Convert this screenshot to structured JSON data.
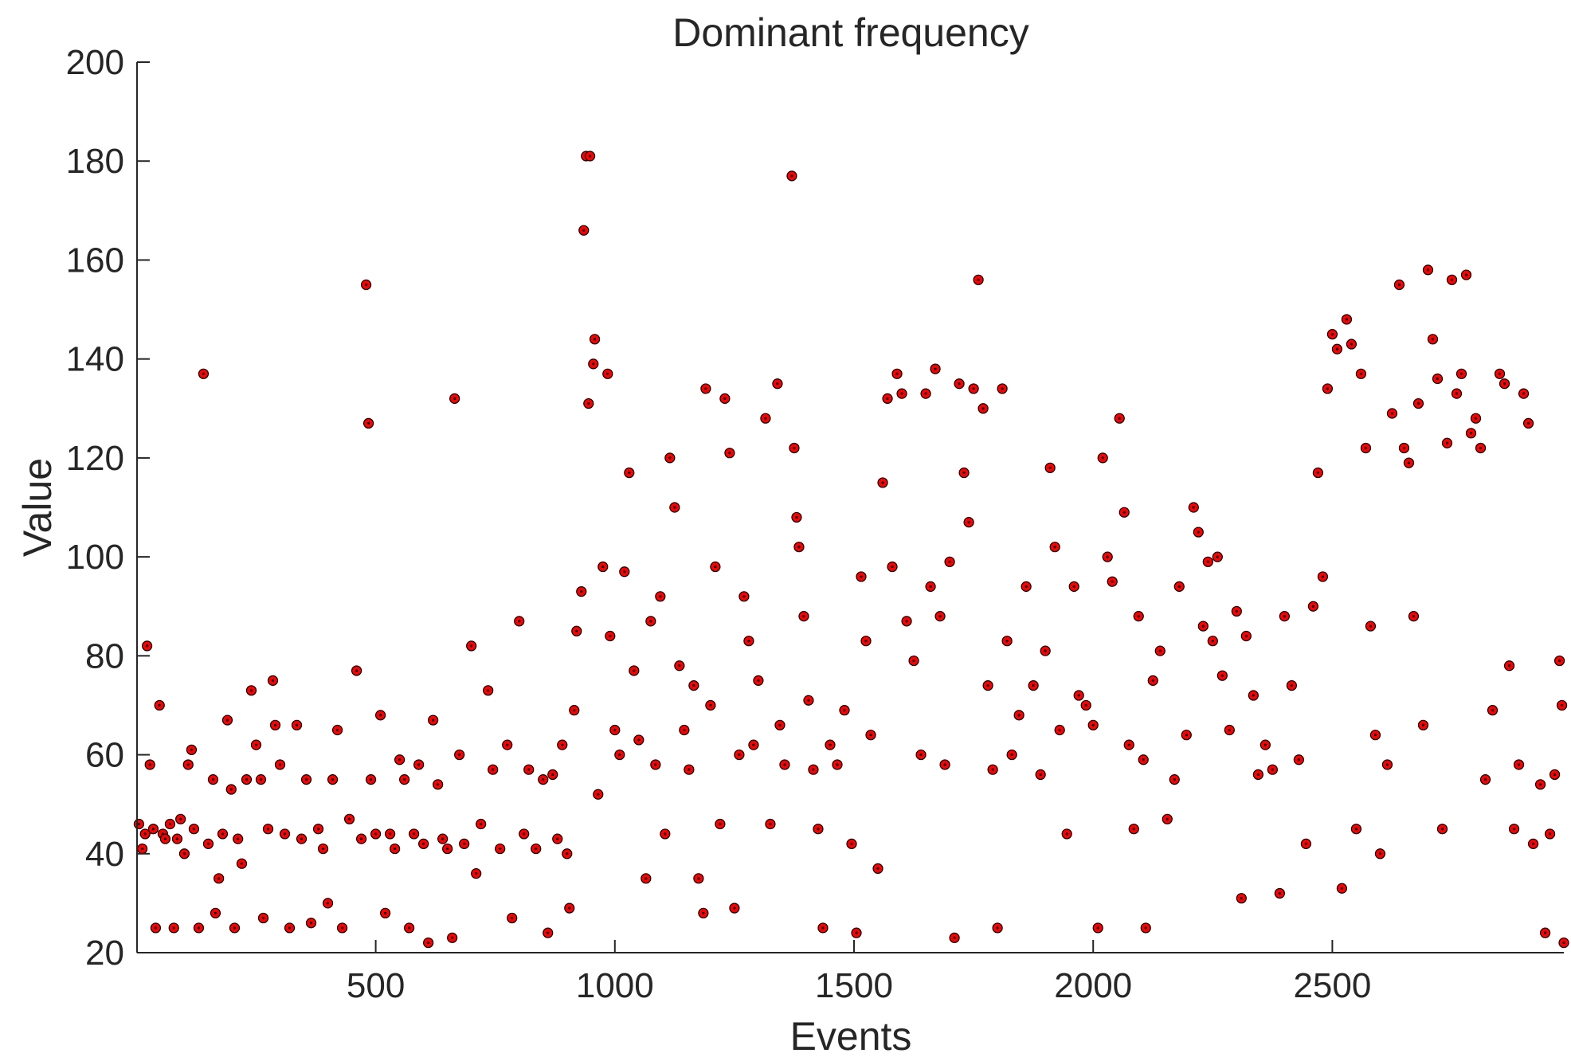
{
  "chart_data": {
    "type": "scatter",
    "title": "Dominant frequency",
    "xlabel": "Events",
    "ylabel": "Value",
    "xlim": [
      1,
      2984
    ],
    "ylim": [
      20,
      200
    ],
    "xticks": [
      500,
      1000,
      1500,
      2000,
      2500
    ],
    "yticks": [
      20,
      40,
      60,
      80,
      100,
      120,
      140,
      160,
      180,
      200
    ],
    "grid": false,
    "marker_color": "#ff0000",
    "marker_edge_color": "#000000",
    "series": [
      {
        "points": [
          [
            5,
            46
          ],
          [
            12,
            41
          ],
          [
            18,
            44
          ],
          [
            22,
            82
          ],
          [
            28,
            58
          ],
          [
            35,
            45
          ],
          [
            40,
            25
          ],
          [
            48,
            70
          ],
          [
            55,
            44
          ],
          [
            60,
            43
          ],
          [
            70,
            46
          ],
          [
            78,
            25
          ],
          [
            85,
            43
          ],
          [
            92,
            47
          ],
          [
            100,
            40
          ],
          [
            108,
            58
          ],
          [
            115,
            61
          ],
          [
            120,
            45
          ],
          [
            130,
            25
          ],
          [
            140,
            137
          ],
          [
            150,
            42
          ],
          [
            160,
            55
          ],
          [
            165,
            28
          ],
          [
            172,
            35
          ],
          [
            180,
            44
          ],
          [
            190,
            67
          ],
          [
            198,
            53
          ],
          [
            205,
            25
          ],
          [
            212,
            43
          ],
          [
            220,
            38
          ],
          [
            230,
            55
          ],
          [
            240,
            73
          ],
          [
            250,
            62
          ],
          [
            260,
            55
          ],
          [
            265,
            27
          ],
          [
            275,
            45
          ],
          [
            285,
            75
          ],
          [
            290,
            66
          ],
          [
            300,
            58
          ],
          [
            310,
            44
          ],
          [
            320,
            25
          ],
          [
            335,
            66
          ],
          [
            345,
            43
          ],
          [
            355,
            55
          ],
          [
            365,
            26
          ],
          [
            380,
            45
          ],
          [
            390,
            41
          ],
          [
            400,
            30
          ],
          [
            410,
            55
          ],
          [
            420,
            65
          ],
          [
            430,
            25
          ],
          [
            445,
            47
          ],
          [
            460,
            77
          ],
          [
            470,
            43
          ],
          [
            480,
            155
          ],
          [
            485,
            127
          ],
          [
            490,
            55
          ],
          [
            500,
            44
          ],
          [
            510,
            68
          ],
          [
            520,
            28
          ],
          [
            530,
            44
          ],
          [
            540,
            41
          ],
          [
            550,
            59
          ],
          [
            560,
            55
          ],
          [
            570,
            25
          ],
          [
            580,
            44
          ],
          [
            590,
            58
          ],
          [
            600,
            42
          ],
          [
            610,
            22
          ],
          [
            620,
            67
          ],
          [
            630,
            54
          ],
          [
            640,
            43
          ],
          [
            650,
            41
          ],
          [
            660,
            23
          ],
          [
            665,
            132
          ],
          [
            675,
            60
          ],
          [
            685,
            42
          ],
          [
            700,
            82
          ],
          [
            710,
            36
          ],
          [
            720,
            46
          ],
          [
            735,
            73
          ],
          [
            745,
            57
          ],
          [
            760,
            41
          ],
          [
            775,
            62
          ],
          [
            785,
            27
          ],
          [
            800,
            87
          ],
          [
            810,
            44
          ],
          [
            820,
            57
          ],
          [
            835,
            41
          ],
          [
            850,
            55
          ],
          [
            860,
            24
          ],
          [
            870,
            56
          ],
          [
            880,
            43
          ],
          [
            890,
            62
          ],
          [
            900,
            40
          ],
          [
            905,
            29
          ],
          [
            915,
            69
          ],
          [
            920,
            85
          ],
          [
            930,
            93
          ],
          [
            935,
            166
          ],
          [
            940,
            181
          ],
          [
            945,
            131
          ],
          [
            948,
            181
          ],
          [
            955,
            139
          ],
          [
            958,
            144
          ],
          [
            965,
            52
          ],
          [
            975,
            98
          ],
          [
            985,
            137
          ],
          [
            990,
            84
          ],
          [
            1000,
            65
          ],
          [
            1010,
            60
          ],
          [
            1020,
            97
          ],
          [
            1030,
            117
          ],
          [
            1040,
            77
          ],
          [
            1050,
            63
          ],
          [
            1065,
            35
          ],
          [
            1075,
            87
          ],
          [
            1085,
            58
          ],
          [
            1095,
            92
          ],
          [
            1105,
            44
          ],
          [
            1115,
            120
          ],
          [
            1125,
            110
          ],
          [
            1135,
            78
          ],
          [
            1145,
            65
          ],
          [
            1155,
            57
          ],
          [
            1165,
            74
          ],
          [
            1175,
            35
          ],
          [
            1185,
            28
          ],
          [
            1190,
            134
          ],
          [
            1200,
            70
          ],
          [
            1210,
            98
          ],
          [
            1220,
            46
          ],
          [
            1230,
            132
          ],
          [
            1240,
            121
          ],
          [
            1250,
            29
          ],
          [
            1260,
            60
          ],
          [
            1270,
            92
          ],
          [
            1280,
            83
          ],
          [
            1290,
            62
          ],
          [
            1300,
            75
          ],
          [
            1315,
            128
          ],
          [
            1325,
            46
          ],
          [
            1340,
            135
          ],
          [
            1345,
            66
          ],
          [
            1355,
            58
          ],
          [
            1370,
            177
          ],
          [
            1375,
            122
          ],
          [
            1380,
            108
          ],
          [
            1385,
            102
          ],
          [
            1395,
            88
          ],
          [
            1405,
            71
          ],
          [
            1415,
            57
          ],
          [
            1425,
            45
          ],
          [
            1435,
            25
          ],
          [
            1450,
            62
          ],
          [
            1465,
            58
          ],
          [
            1480,
            69
          ],
          [
            1495,
            42
          ],
          [
            1505,
            24
          ],
          [
            1515,
            96
          ],
          [
            1525,
            83
          ],
          [
            1535,
            64
          ],
          [
            1550,
            37
          ],
          [
            1560,
            115
          ],
          [
            1570,
            132
          ],
          [
            1580,
            98
          ],
          [
            1590,
            137
          ],
          [
            1600,
            133
          ],
          [
            1610,
            87
          ],
          [
            1625,
            79
          ],
          [
            1640,
            60
          ],
          [
            1650,
            133
          ],
          [
            1660,
            94
          ],
          [
            1670,
            138
          ],
          [
            1680,
            88
          ],
          [
            1690,
            58
          ],
          [
            1700,
            99
          ],
          [
            1710,
            23
          ],
          [
            1720,
            135
          ],
          [
            1730,
            117
          ],
          [
            1740,
            107
          ],
          [
            1750,
            134
          ],
          [
            1760,
            156
          ],
          [
            1770,
            130
          ],
          [
            1780,
            74
          ],
          [
            1790,
            57
          ],
          [
            1800,
            25
          ],
          [
            1810,
            134
          ],
          [
            1820,
            83
          ],
          [
            1830,
            60
          ],
          [
            1845,
            68
          ],
          [
            1860,
            94
          ],
          [
            1875,
            74
          ],
          [
            1890,
            56
          ],
          [
            1900,
            81
          ],
          [
            1910,
            118
          ],
          [
            1920,
            102
          ],
          [
            1930,
            65
          ],
          [
            1945,
            44
          ],
          [
            1960,
            94
          ],
          [
            1970,
            72
          ],
          [
            1985,
            70
          ],
          [
            2000,
            66
          ],
          [
            2010,
            25
          ],
          [
            2020,
            120
          ],
          [
            2030,
            100
          ],
          [
            2040,
            95
          ],
          [
            2055,
            128
          ],
          [
            2065,
            109
          ],
          [
            2075,
            62
          ],
          [
            2085,
            45
          ],
          [
            2095,
            88
          ],
          [
            2105,
            59
          ],
          [
            2110,
            25
          ],
          [
            2125,
            75
          ],
          [
            2140,
            81
          ],
          [
            2155,
            47
          ],
          [
            2170,
            55
          ],
          [
            2180,
            94
          ],
          [
            2195,
            64
          ],
          [
            2210,
            110
          ],
          [
            2220,
            105
          ],
          [
            2230,
            86
          ],
          [
            2240,
            99
          ],
          [
            2250,
            83
          ],
          [
            2260,
            100
          ],
          [
            2270,
            76
          ],
          [
            2285,
            65
          ],
          [
            2300,
            89
          ],
          [
            2310,
            31
          ],
          [
            2320,
            84
          ],
          [
            2335,
            72
          ],
          [
            2345,
            56
          ],
          [
            2360,
            62
          ],
          [
            2375,
            57
          ],
          [
            2390,
            32
          ],
          [
            2400,
            88
          ],
          [
            2415,
            74
          ],
          [
            2430,
            59
          ],
          [
            2445,
            42
          ],
          [
            2460,
            90
          ],
          [
            2470,
            117
          ],
          [
            2480,
            96
          ],
          [
            2490,
            134
          ],
          [
            2500,
            145
          ],
          [
            2510,
            142
          ],
          [
            2520,
            33
          ],
          [
            2530,
            148
          ],
          [
            2540,
            143
          ],
          [
            2550,
            45
          ],
          [
            2560,
            137
          ],
          [
            2570,
            122
          ],
          [
            2580,
            86
          ],
          [
            2590,
            64
          ],
          [
            2600,
            40
          ],
          [
            2615,
            58
          ],
          [
            2625,
            129
          ],
          [
            2640,
            155
          ],
          [
            2650,
            122
          ],
          [
            2660,
            119
          ],
          [
            2670,
            88
          ],
          [
            2680,
            131
          ],
          [
            2690,
            66
          ],
          [
            2700,
            158
          ],
          [
            2710,
            144
          ],
          [
            2720,
            136
          ],
          [
            2730,
            45
          ],
          [
            2740,
            123
          ],
          [
            2750,
            156
          ],
          [
            2760,
            133
          ],
          [
            2770,
            137
          ],
          [
            2780,
            157
          ],
          [
            2790,
            125
          ],
          [
            2800,
            128
          ],
          [
            2810,
            122
          ],
          [
            2820,
            55
          ],
          [
            2835,
            69
          ],
          [
            2850,
            137
          ],
          [
            2860,
            135
          ],
          [
            2870,
            78
          ],
          [
            2880,
            45
          ],
          [
            2890,
            58
          ],
          [
            2900,
            133
          ],
          [
            2910,
            127
          ],
          [
            2920,
            42
          ],
          [
            2935,
            54
          ],
          [
            2945,
            24
          ],
          [
            2955,
            44
          ],
          [
            2965,
            56
          ],
          [
            2975,
            79
          ],
          [
            2980,
            70
          ],
          [
            2984,
            22
          ]
        ]
      }
    ]
  }
}
